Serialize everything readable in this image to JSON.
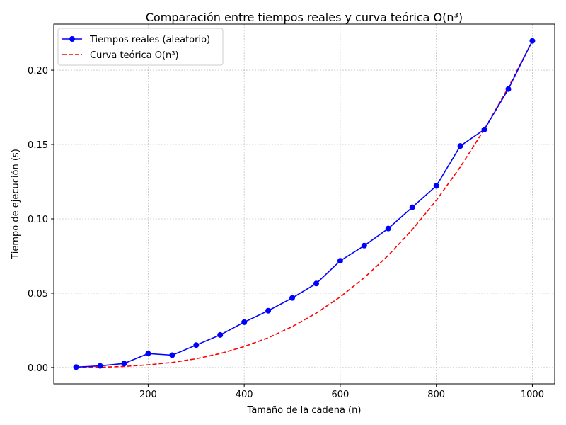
{
  "chart_data": {
    "type": "line",
    "title": "Comparación entre tiempos reales y curva teórica O(n³)",
    "xlabel": "Tamaño de la cadena (n)",
    "ylabel": "Tiempo de ejecución (s)",
    "xlim": [
      3.5,
      1046.5
    ],
    "ylim": [
      -0.011,
      0.231
    ],
    "xticks": [
      200,
      400,
      600,
      800,
      1000
    ],
    "xtick_labels": [
      "200",
      "400",
      "600",
      "800",
      "1000"
    ],
    "yticks": [
      0.0,
      0.05,
      0.1,
      0.15,
      0.2
    ],
    "ytick_labels": [
      "0.00",
      "0.05",
      "0.10",
      "0.15",
      "0.20"
    ],
    "grid": true,
    "legend_position": "top-left",
    "x": [
      50,
      100,
      150,
      200,
      250,
      300,
      350,
      400,
      450,
      500,
      550,
      600,
      650,
      700,
      750,
      800,
      850,
      900,
      950,
      1000
    ],
    "series": [
      {
        "name": "Tiempos reales (aleatorio)",
        "color": "#0000ff",
        "style": "solid",
        "marker": "circle",
        "values": [
          0.0003,
          0.0011,
          0.0027,
          0.0094,
          0.0083,
          0.0151,
          0.0219,
          0.0305,
          0.0382,
          0.0468,
          0.0565,
          0.0718,
          0.082,
          0.0935,
          0.1078,
          0.1222,
          0.149,
          0.1601,
          0.1873,
          0.2197
        ]
      },
      {
        "name": "Curva teórica O(n³)",
        "color": "#ff0000",
        "style": "dashed",
        "marker": "none",
        "values": [
          0.0,
          0.0002,
          0.0007,
          0.0018,
          0.0034,
          0.0059,
          0.0094,
          0.0141,
          0.02,
          0.0275,
          0.0366,
          0.0475,
          0.0604,
          0.0754,
          0.0927,
          0.1125,
          0.1349,
          0.1602,
          0.1884,
          0.2197
        ]
      }
    ]
  }
}
